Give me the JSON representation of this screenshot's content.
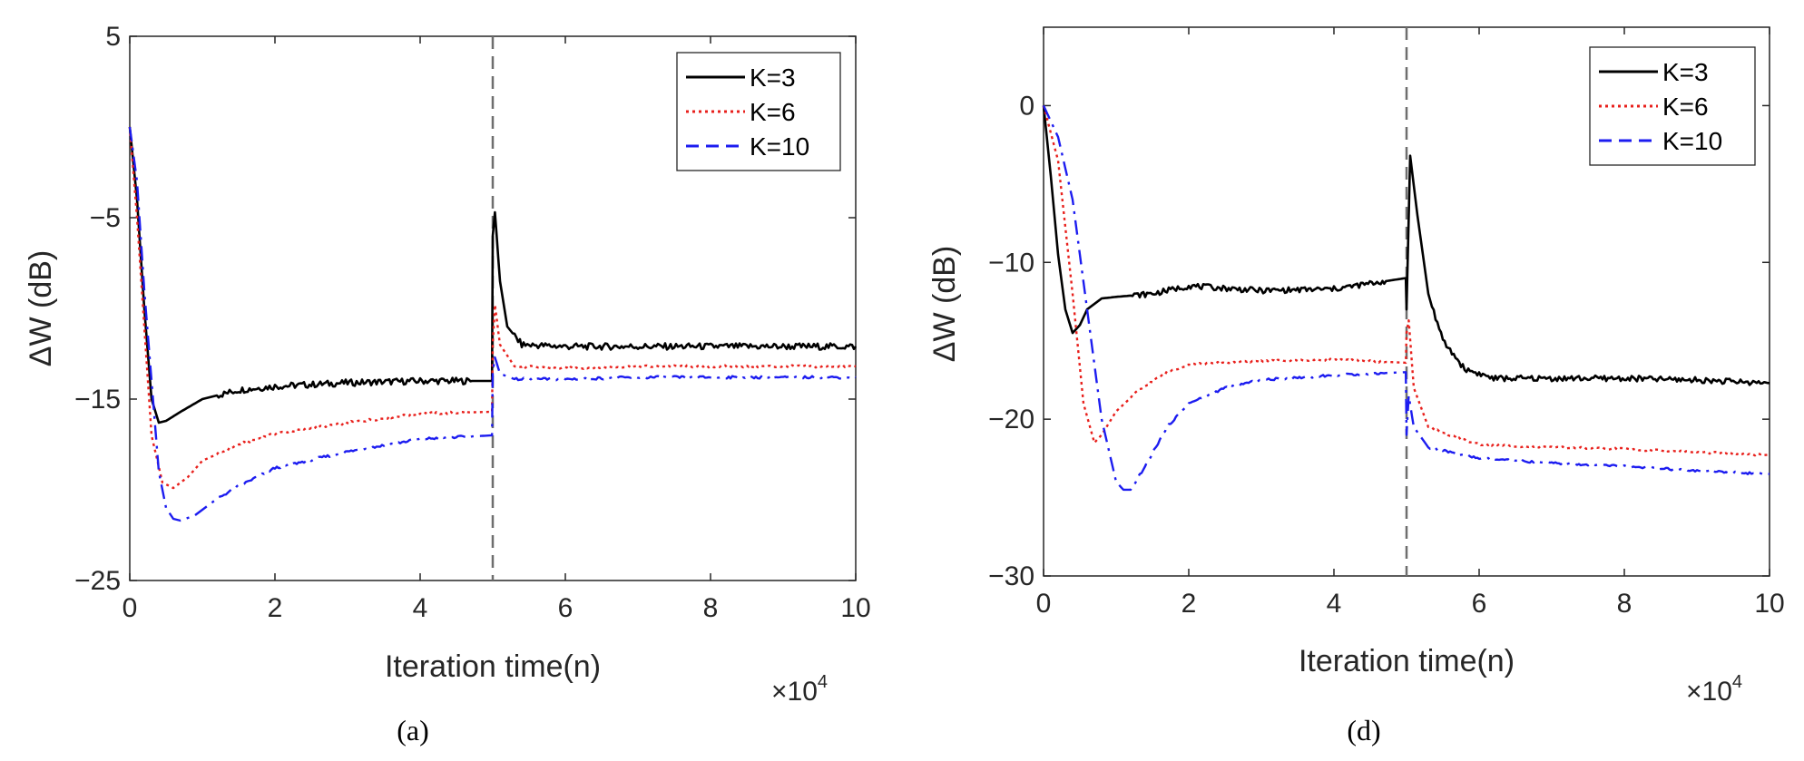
{
  "chart_data": [
    {
      "type": "line",
      "panel_label": "(a)",
      "xlabel": "Iteration time(n)",
      "ylabel": "ΔW (dB)",
      "x_multiplier": "×10",
      "x_multiplier_exp": "4",
      "xlim": [
        0,
        10
      ],
      "ylim": [
        -25,
        5
      ],
      "xticks": [
        0,
        2,
        4,
        6,
        8,
        10
      ],
      "yticks": [
        5,
        -5,
        -15,
        -25
      ],
      "vline_x": 5,
      "legend_position": "top-right",
      "series": [
        {
          "name": "K=3",
          "color": "#000000",
          "style": "solid",
          "x": [
            0,
            0.1,
            0.2,
            0.3,
            0.4,
            0.5,
            0.7,
            1,
            1.5,
            2,
            3,
            4,
            4.99,
            5.0,
            5.03,
            5.1,
            5.2,
            5.4,
            6,
            7,
            8,
            9,
            10
          ],
          "y": [
            0,
            -4,
            -10,
            -15,
            -16.3,
            -16.2,
            -15.7,
            -15,
            -14.5,
            -14.3,
            -14.1,
            -14,
            -14,
            -6,
            -4.7,
            -8.5,
            -11,
            -12,
            -12.1,
            -12.1,
            -12.1,
            -12.1,
            -12.1
          ]
        },
        {
          "name": "K=6",
          "color": "#e8201c",
          "style": "dotted",
          "x": [
            0,
            0.1,
            0.2,
            0.3,
            0.45,
            0.6,
            0.8,
            1,
            1.5,
            2,
            3,
            4,
            4.99,
            5.0,
            5.03,
            5.1,
            5.3,
            6,
            7,
            8,
            9,
            10
          ],
          "y": [
            0,
            -5,
            -11,
            -17,
            -19.6,
            -19.9,
            -19.3,
            -18.4,
            -17.5,
            -16.9,
            -16.3,
            -15.8,
            -15.7,
            -12,
            -9.8,
            -12,
            -13.2,
            -13.3,
            -13.2,
            -13.2,
            -13.2,
            -13.2
          ]
        },
        {
          "name": "K=10",
          "color": "#1c1cf0",
          "style": "dashdot",
          "x": [
            0,
            0.1,
            0.2,
            0.3,
            0.4,
            0.5,
            0.6,
            0.7,
            0.9,
            1.2,
            1.5,
            2,
            3,
            4,
            4.99,
            5.0,
            5.03,
            5.1,
            5.3,
            6,
            7,
            8,
            9,
            10
          ],
          "y": [
            0,
            -3,
            -9,
            -14,
            -19,
            -21,
            -21.6,
            -21.7,
            -21.4,
            -20.5,
            -19.8,
            -18.8,
            -17.9,
            -17.2,
            -17,
            -13.5,
            -12.7,
            -13.6,
            -13.9,
            -13.9,
            -13.8,
            -13.8,
            -13.8,
            -13.8
          ]
        }
      ]
    },
    {
      "type": "line",
      "panel_label": "(d)",
      "xlabel": "Iteration time(n)",
      "ylabel": "ΔW (dB)",
      "x_multiplier": "×10",
      "x_multiplier_exp": "4",
      "xlim": [
        0,
        10
      ],
      "ylim": [
        -30,
        5
      ],
      "xticks": [
        0,
        2,
        4,
        6,
        8,
        10
      ],
      "yticks": [
        0,
        -10,
        -20,
        -30
      ],
      "vline_x": 5,
      "legend_position": "top-right",
      "series": [
        {
          "name": "K=3",
          "color": "#000000",
          "style": "solid",
          "x": [
            0,
            0.1,
            0.2,
            0.3,
            0.4,
            0.5,
            0.6,
            0.8,
            1,
            1.5,
            2,
            3,
            4,
            4.99,
            5.0,
            5.05,
            5.15,
            5.3,
            5.5,
            5.8,
            6.2,
            7,
            8,
            9,
            10
          ],
          "y": [
            0,
            -4.5,
            -9.5,
            -13,
            -14.5,
            -14,
            -13,
            -12.3,
            -12.2,
            -12,
            -11.5,
            -11.8,
            -11.7,
            -11,
            -13,
            -3.2,
            -7,
            -12,
            -15,
            -16.8,
            -17.4,
            -17.4,
            -17.4,
            -17.5,
            -17.7
          ]
        },
        {
          "name": "K=6",
          "color": "#e8201c",
          "style": "dotted",
          "x": [
            0,
            0.2,
            0.4,
            0.55,
            0.7,
            0.8,
            1,
            1.3,
            1.7,
            2,
            3,
            4,
            4.99,
            5.0,
            5.03,
            5.1,
            5.3,
            5.7,
            6,
            7,
            8,
            9,
            10
          ],
          "y": [
            0,
            -3.5,
            -12,
            -19,
            -21.5,
            -21,
            -19.5,
            -18.2,
            -17,
            -16.5,
            -16.3,
            -16.2,
            -16.4,
            -14.5,
            -13.7,
            -18,
            -20.5,
            -21.2,
            -21.6,
            -21.8,
            -21.9,
            -22.1,
            -22.3
          ]
        },
        {
          "name": "K=10",
          "color": "#1c1cf0",
          "style": "dashdot",
          "x": [
            0,
            0.2,
            0.4,
            0.6,
            0.8,
            1,
            1.1,
            1.2,
            1.4,
            1.7,
            2,
            2.5,
            3,
            4,
            4.99,
            5.0,
            5.03,
            5.1,
            5.3,
            5.7,
            6,
            7,
            8,
            9,
            10
          ],
          "y": [
            0,
            -2,
            -6,
            -13,
            -20,
            -24,
            -24.5,
            -24.5,
            -23,
            -20.5,
            -19,
            -18,
            -17.5,
            -17.2,
            -17,
            -21,
            -18.5,
            -20.5,
            -21.8,
            -22.2,
            -22.5,
            -22.8,
            -23,
            -23.3,
            -23.5
          ]
        }
      ]
    }
  ]
}
